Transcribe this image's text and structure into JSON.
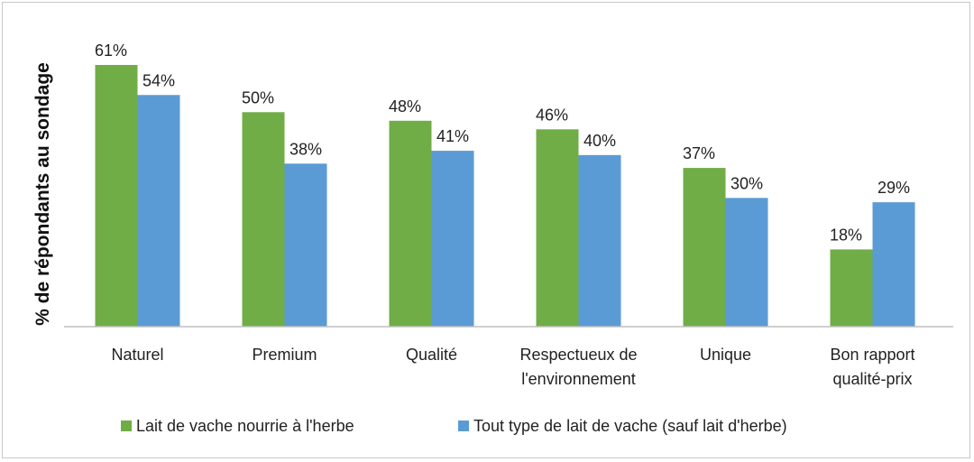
{
  "chart_data": {
    "type": "bar",
    "ylabel": "% de répondants au sondage",
    "categories": [
      [
        "Naturel"
      ],
      [
        "Premium"
      ],
      [
        "Qualité"
      ],
      [
        "Respectueux de",
        "l'environnement"
      ],
      [
        "Unique"
      ],
      [
        "Bon rapport",
        "qualité-prix"
      ]
    ],
    "series": [
      {
        "name": "Lait de vache nourrie à l'herbe",
        "color": "#70ad47",
        "values": [
          61,
          50,
          48,
          46,
          37,
          18
        ],
        "labels": [
          "61%",
          "50%",
          "48%",
          "46%",
          "37%",
          "18%"
        ]
      },
      {
        "name": "Tout type de lait de vache (sauf lait d'herbe)",
        "color": "#5b9bd5",
        "values": [
          54,
          38,
          41,
          40,
          30,
          29
        ],
        "labels": [
          "54%",
          "38%",
          "41%",
          "40%",
          "30%",
          "29%"
        ]
      }
    ],
    "ylim": [
      0,
      61
    ],
    "grid": false,
    "legend_position": "bottom"
  }
}
